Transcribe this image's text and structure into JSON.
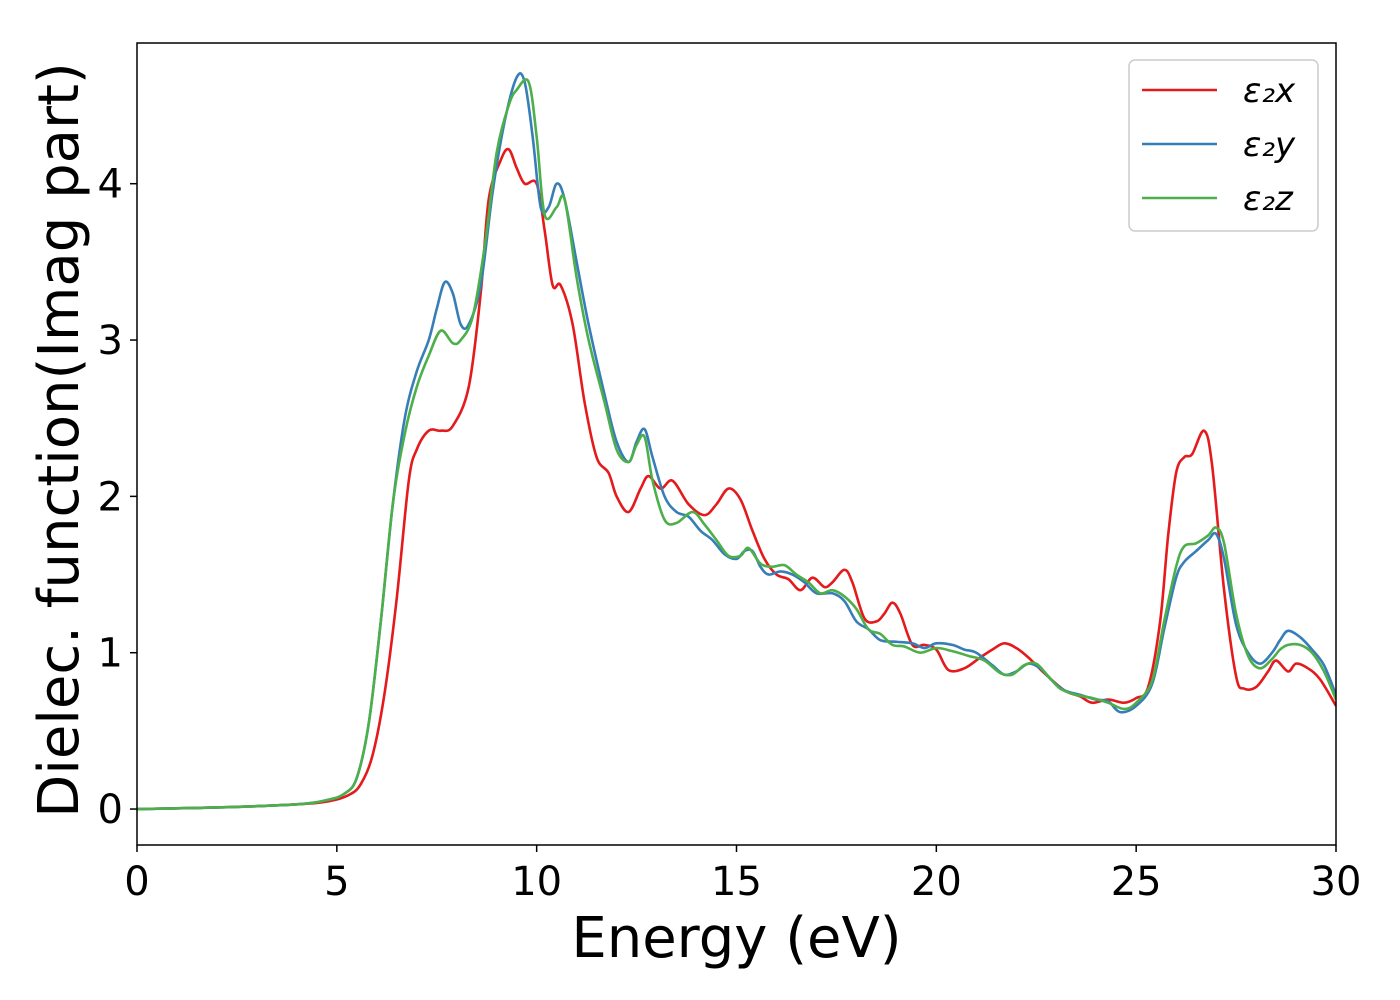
{
  "chart_data": {
    "type": "line",
    "xlabel": "Energy (eV)",
    "ylabel": "Dielec. function(Imag part)",
    "xlim": [
      0,
      30
    ],
    "ylim": [
      -0.23,
      4.9
    ],
    "xticks": [
      0,
      5,
      10,
      15,
      20,
      25,
      30
    ],
    "yticks": [
      0,
      1,
      2,
      3,
      4
    ],
    "grid": false,
    "legend_position": "top-right",
    "series": [
      {
        "name": "ε₂x",
        "color": "#e41a1c",
        "points": [
          [
            0,
            0
          ],
          [
            2,
            0.01
          ],
          [
            4,
            0.03
          ],
          [
            4.8,
            0.05
          ],
          [
            5.3,
            0.09
          ],
          [
            5.6,
            0.16
          ],
          [
            5.9,
            0.35
          ],
          [
            6.2,
            0.75
          ],
          [
            6.5,
            1.35
          ],
          [
            6.8,
            2.1
          ],
          [
            7.0,
            2.3
          ],
          [
            7.3,
            2.42
          ],
          [
            7.6,
            2.42
          ],
          [
            7.9,
            2.45
          ],
          [
            8.3,
            2.7
          ],
          [
            8.6,
            3.3
          ],
          [
            8.8,
            3.9
          ],
          [
            9.1,
            4.15
          ],
          [
            9.3,
            4.22
          ],
          [
            9.5,
            4.1
          ],
          [
            9.7,
            4.0
          ],
          [
            10.0,
            4.0
          ],
          [
            10.2,
            3.7
          ],
          [
            10.4,
            3.35
          ],
          [
            10.6,
            3.35
          ],
          [
            10.9,
            3.1
          ],
          [
            11.2,
            2.6
          ],
          [
            11.5,
            2.25
          ],
          [
            11.8,
            2.15
          ],
          [
            12.0,
            2.0
          ],
          [
            12.3,
            1.9
          ],
          [
            12.6,
            2.05
          ],
          [
            12.8,
            2.13
          ],
          [
            13.1,
            2.05
          ],
          [
            13.4,
            2.1
          ],
          [
            13.8,
            1.95
          ],
          [
            14.2,
            1.88
          ],
          [
            14.5,
            1.95
          ],
          [
            14.8,
            2.05
          ],
          [
            15.1,
            1.98
          ],
          [
            15.4,
            1.78
          ],
          [
            15.7,
            1.6
          ],
          [
            16.0,
            1.5
          ],
          [
            16.3,
            1.47
          ],
          [
            16.6,
            1.4
          ],
          [
            16.9,
            1.48
          ],
          [
            17.2,
            1.42
          ],
          [
            17.4,
            1.45
          ],
          [
            17.7,
            1.53
          ],
          [
            17.9,
            1.45
          ],
          [
            18.2,
            1.22
          ],
          [
            18.5,
            1.2
          ],
          [
            18.7,
            1.25
          ],
          [
            18.9,
            1.32
          ],
          [
            19.1,
            1.25
          ],
          [
            19.4,
            1.05
          ],
          [
            19.7,
            1.05
          ],
          [
            20.0,
            1.02
          ],
          [
            20.3,
            0.89
          ],
          [
            20.7,
            0.9
          ],
          [
            21.1,
            0.97
          ],
          [
            21.4,
            1.02
          ],
          [
            21.7,
            1.06
          ],
          [
            22.0,
            1.03
          ],
          [
            22.3,
            0.97
          ],
          [
            22.7,
            0.87
          ],
          [
            23.2,
            0.76
          ],
          [
            23.6,
            0.72
          ],
          [
            23.9,
            0.68
          ],
          [
            24.3,
            0.7
          ],
          [
            24.7,
            0.68
          ],
          [
            25.0,
            0.71
          ],
          [
            25.3,
            0.78
          ],
          [
            25.6,
            1.2
          ],
          [
            25.8,
            1.75
          ],
          [
            26.0,
            2.15
          ],
          [
            26.2,
            2.25
          ],
          [
            26.4,
            2.27
          ],
          [
            26.7,
            2.42
          ],
          [
            26.9,
            2.2
          ],
          [
            27.2,
            1.4
          ],
          [
            27.5,
            0.85
          ],
          [
            27.7,
            0.77
          ],
          [
            28.0,
            0.78
          ],
          [
            28.3,
            0.88
          ],
          [
            28.5,
            0.95
          ],
          [
            28.8,
            0.88
          ],
          [
            29.0,
            0.93
          ],
          [
            29.3,
            0.9
          ],
          [
            29.6,
            0.83
          ],
          [
            30.0,
            0.66
          ]
        ]
      },
      {
        "name": "ε₂y",
        "color": "#377eb8",
        "points": [
          [
            0,
            0
          ],
          [
            2,
            0.01
          ],
          [
            4,
            0.03
          ],
          [
            4.8,
            0.06
          ],
          [
            5.2,
            0.1
          ],
          [
            5.5,
            0.2
          ],
          [
            5.8,
            0.55
          ],
          [
            6.1,
            1.2
          ],
          [
            6.4,
            1.95
          ],
          [
            6.7,
            2.5
          ],
          [
            7.0,
            2.8
          ],
          [
            7.3,
            3.0
          ],
          [
            7.5,
            3.2
          ],
          [
            7.7,
            3.37
          ],
          [
            7.9,
            3.3
          ],
          [
            8.1,
            3.1
          ],
          [
            8.3,
            3.1
          ],
          [
            8.6,
            3.35
          ],
          [
            8.9,
            3.95
          ],
          [
            9.2,
            4.4
          ],
          [
            9.5,
            4.68
          ],
          [
            9.7,
            4.65
          ],
          [
            9.9,
            4.3
          ],
          [
            10.1,
            3.85
          ],
          [
            10.3,
            3.85
          ],
          [
            10.5,
            4.0
          ],
          [
            10.7,
            3.9
          ],
          [
            11.0,
            3.5
          ],
          [
            11.3,
            3.1
          ],
          [
            11.7,
            2.65
          ],
          [
            12.0,
            2.35
          ],
          [
            12.3,
            2.22
          ],
          [
            12.5,
            2.35
          ],
          [
            12.7,
            2.43
          ],
          [
            12.9,
            2.25
          ],
          [
            13.2,
            2.0
          ],
          [
            13.5,
            1.9
          ],
          [
            13.8,
            1.87
          ],
          [
            14.1,
            1.78
          ],
          [
            14.4,
            1.72
          ],
          [
            14.7,
            1.63
          ],
          [
            15.0,
            1.6
          ],
          [
            15.2,
            1.65
          ],
          [
            15.4,
            1.65
          ],
          [
            15.6,
            1.55
          ],
          [
            15.8,
            1.5
          ],
          [
            16.1,
            1.52
          ],
          [
            16.4,
            1.5
          ],
          [
            16.7,
            1.45
          ],
          [
            17.0,
            1.38
          ],
          [
            17.4,
            1.38
          ],
          [
            17.7,
            1.33
          ],
          [
            18.0,
            1.2
          ],
          [
            18.3,
            1.15
          ],
          [
            18.6,
            1.08
          ],
          [
            19.0,
            1.07
          ],
          [
            19.4,
            1.06
          ],
          [
            19.7,
            1.03
          ],
          [
            20.0,
            1.06
          ],
          [
            20.4,
            1.05
          ],
          [
            20.7,
            1.02
          ],
          [
            21.0,
            1.0
          ],
          [
            21.4,
            0.92
          ],
          [
            21.7,
            0.86
          ],
          [
            22.0,
            0.88
          ],
          [
            22.3,
            0.93
          ],
          [
            22.6,
            0.9
          ],
          [
            22.9,
            0.82
          ],
          [
            23.2,
            0.76
          ],
          [
            23.6,
            0.73
          ],
          [
            24.0,
            0.7
          ],
          [
            24.3,
            0.69
          ],
          [
            24.6,
            0.62
          ],
          [
            25.0,
            0.66
          ],
          [
            25.4,
            0.8
          ],
          [
            25.7,
            1.15
          ],
          [
            26.0,
            1.48
          ],
          [
            26.2,
            1.58
          ],
          [
            26.5,
            1.65
          ],
          [
            26.8,
            1.72
          ],
          [
            27.0,
            1.76
          ],
          [
            27.2,
            1.6
          ],
          [
            27.5,
            1.18
          ],
          [
            27.8,
            1.0
          ],
          [
            28.1,
            0.93
          ],
          [
            28.4,
            1.0
          ],
          [
            28.6,
            1.08
          ],
          [
            28.8,
            1.14
          ],
          [
            29.1,
            1.1
          ],
          [
            29.4,
            1.02
          ],
          [
            29.7,
            0.92
          ],
          [
            30.0,
            0.73
          ]
        ]
      },
      {
        "name": "ε₂z",
        "color": "#4daf4a",
        "points": [
          [
            0,
            0
          ],
          [
            2,
            0.01
          ],
          [
            4,
            0.03
          ],
          [
            4.8,
            0.06
          ],
          [
            5.2,
            0.1
          ],
          [
            5.5,
            0.2
          ],
          [
            5.8,
            0.55
          ],
          [
            6.1,
            1.2
          ],
          [
            6.4,
            1.95
          ],
          [
            6.7,
            2.4
          ],
          [
            7.0,
            2.7
          ],
          [
            7.3,
            2.9
          ],
          [
            7.6,
            3.06
          ],
          [
            7.9,
            2.98
          ],
          [
            8.1,
            3.0
          ],
          [
            8.4,
            3.15
          ],
          [
            8.7,
            3.6
          ],
          [
            9.0,
            4.2
          ],
          [
            9.3,
            4.5
          ],
          [
            9.5,
            4.6
          ],
          [
            9.8,
            4.65
          ],
          [
            10.0,
            4.3
          ],
          [
            10.2,
            3.8
          ],
          [
            10.5,
            3.85
          ],
          [
            10.7,
            3.9
          ],
          [
            11.0,
            3.4
          ],
          [
            11.3,
            3.0
          ],
          [
            11.7,
            2.6
          ],
          [
            12.0,
            2.3
          ],
          [
            12.3,
            2.22
          ],
          [
            12.5,
            2.33
          ],
          [
            12.7,
            2.38
          ],
          [
            12.9,
            2.1
          ],
          [
            13.2,
            1.85
          ],
          [
            13.5,
            1.83
          ],
          [
            13.9,
            1.9
          ],
          [
            14.2,
            1.82
          ],
          [
            14.5,
            1.72
          ],
          [
            14.8,
            1.62
          ],
          [
            15.1,
            1.62
          ],
          [
            15.3,
            1.67
          ],
          [
            15.6,
            1.57
          ],
          [
            15.9,
            1.55
          ],
          [
            16.2,
            1.56
          ],
          [
            16.5,
            1.5
          ],
          [
            16.8,
            1.45
          ],
          [
            17.1,
            1.38
          ],
          [
            17.4,
            1.4
          ],
          [
            17.7,
            1.36
          ],
          [
            18.0,
            1.28
          ],
          [
            18.3,
            1.15
          ],
          [
            18.6,
            1.12
          ],
          [
            18.9,
            1.05
          ],
          [
            19.2,
            1.04
          ],
          [
            19.6,
            1.0
          ],
          [
            20.0,
            1.03
          ],
          [
            20.4,
            1.01
          ],
          [
            20.8,
            0.98
          ],
          [
            21.2,
            0.95
          ],
          [
            21.6,
            0.87
          ],
          [
            21.9,
            0.86
          ],
          [
            22.2,
            0.92
          ],
          [
            22.5,
            0.93
          ],
          [
            22.8,
            0.85
          ],
          [
            23.1,
            0.77
          ],
          [
            23.5,
            0.73
          ],
          [
            23.9,
            0.71
          ],
          [
            24.3,
            0.68
          ],
          [
            24.7,
            0.64
          ],
          [
            25.0,
            0.68
          ],
          [
            25.4,
            0.82
          ],
          [
            25.7,
            1.2
          ],
          [
            26.0,
            1.55
          ],
          [
            26.2,
            1.68
          ],
          [
            26.5,
            1.7
          ],
          [
            26.8,
            1.75
          ],
          [
            27.0,
            1.8
          ],
          [
            27.2,
            1.7
          ],
          [
            27.5,
            1.25
          ],
          [
            27.8,
            0.98
          ],
          [
            28.1,
            0.9
          ],
          [
            28.4,
            0.96
          ],
          [
            28.6,
            1.02
          ],
          [
            28.8,
            1.05
          ],
          [
            29.1,
            1.05
          ],
          [
            29.4,
            1.0
          ],
          [
            29.7,
            0.88
          ],
          [
            30.0,
            0.7
          ]
        ]
      }
    ]
  }
}
